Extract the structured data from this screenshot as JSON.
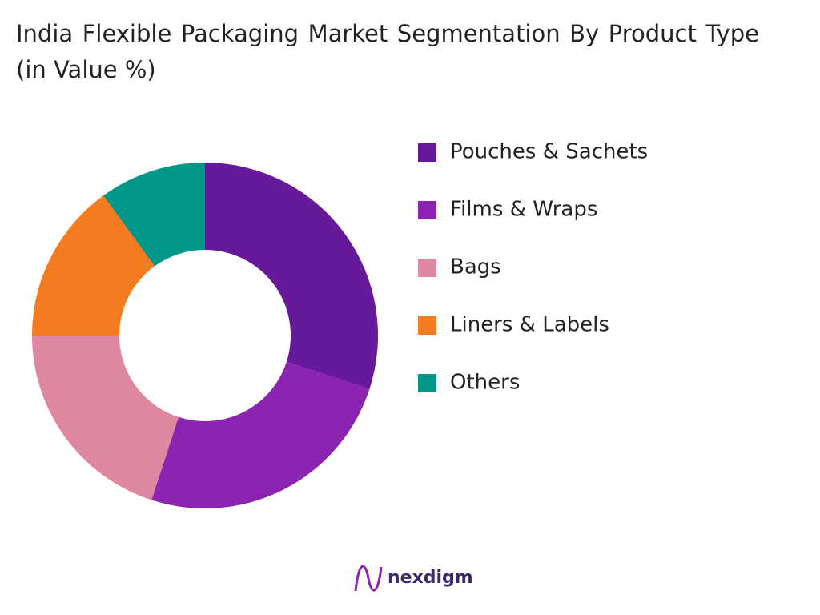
{
  "chart_data": {
    "type": "donut",
    "title": "India Flexible Packaging Market Segmentation By Product Type (in Value %)",
    "categories": [
      "Pouches & Sachets",
      "Films & Wraps",
      "Bags",
      "Liners & Labels",
      "Others"
    ],
    "values": [
      30,
      25,
      20,
      15,
      10
    ],
    "colors": [
      "#661a99",
      "#8b24b0",
      "#de87a0",
      "#f47c20",
      "#009688"
    ],
    "legend": "right"
  },
  "brand": "nexdigm"
}
